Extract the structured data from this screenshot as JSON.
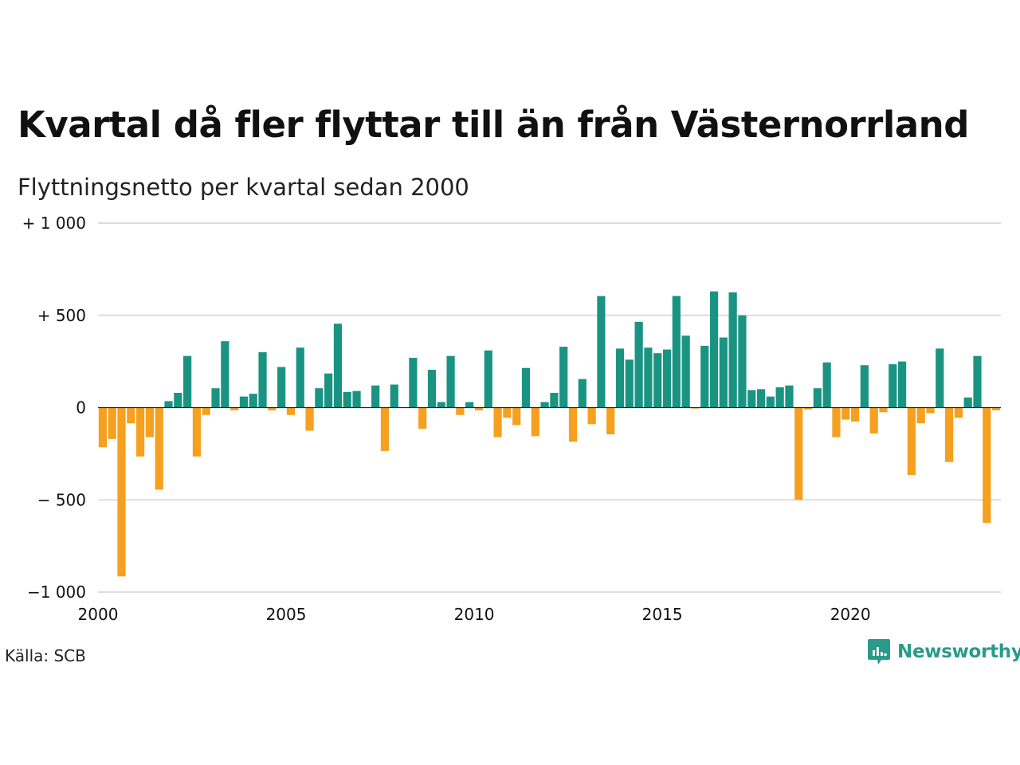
{
  "title": "Kvartal då fler flyttar till än från Västernorrland",
  "subtitle": "Flyttningsnetto per kvartal sedan 2000",
  "source": "Källa: SCB",
  "brand": {
    "name": "Newsworthy",
    "icon": "newsworthy-logo-icon"
  },
  "colors": {
    "positive": "#1a9482",
    "negative": "#f5a01e",
    "grid": "#dddddd",
    "zero": "#222222"
  },
  "chart_data": {
    "type": "bar",
    "title": "Kvartal då fler flyttar till än från Västernorrland",
    "subtitle": "Flyttningsnetto per kvartal sedan 2000",
    "xlabel": "",
    "ylabel": "",
    "x_start": 2000,
    "periods_per_year": 4,
    "xlim": [
      2000,
      2024
    ],
    "ylim": [
      -1000,
      1000
    ],
    "grid": true,
    "y_ticks": [
      {
        "value": 1000,
        "label": "+ 1 000"
      },
      {
        "value": 500,
        "label": "+   500"
      },
      {
        "value": 0,
        "label": "0"
      },
      {
        "value": -500,
        "label": "−  500"
      },
      {
        "value": -1000,
        "label": "−1 000"
      }
    ],
    "x_ticks": [
      {
        "value": 2000,
        "label": "2000"
      },
      {
        "value": 2005,
        "label": "2005"
      },
      {
        "value": 2010,
        "label": "2010"
      },
      {
        "value": 2015,
        "label": "2015"
      },
      {
        "value": 2020,
        "label": "2020"
      }
    ],
    "values": [
      -215,
      -170,
      -915,
      -85,
      -265,
      -160,
      -445,
      35,
      80,
      280,
      -265,
      -40,
      105,
      360,
      -15,
      60,
      75,
      300,
      -15,
      220,
      -40,
      325,
      -125,
      105,
      185,
      455,
      85,
      90,
      0,
      120,
      -235,
      125,
      0,
      270,
      -115,
      205,
      30,
      280,
      -40,
      30,
      -15,
      310,
      -160,
      -55,
      -95,
      215,
      -155,
      30,
      80,
      330,
      -185,
      155,
      -90,
      605,
      -145,
      320,
      260,
      465,
      325,
      295,
      315,
      605,
      390,
      -5,
      335,
      630,
      380,
      625,
      500,
      95,
      100,
      60,
      110,
      120,
      -500,
      -10,
      105,
      245,
      -160,
      -65,
      -75,
      230,
      -140,
      -25,
      235,
      250,
      -365,
      -85,
      -30,
      320,
      -295,
      -55,
      55,
      280,
      -625,
      -15
    ]
  }
}
